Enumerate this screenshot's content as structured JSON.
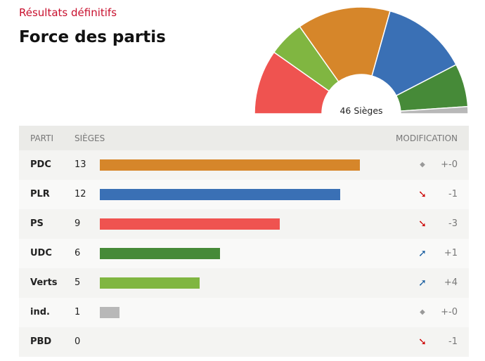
{
  "subtitle": "Résultats définitifs",
  "title": "Force des partis",
  "center_label": "46 Sièges",
  "headers": {
    "party": "PARTI",
    "seats": "SIÈGES",
    "change": "MODIFICATION"
  },
  "chart_data": {
    "type": "bar",
    "title": "Force des partis",
    "total_seats": 46,
    "categories": [
      "PDC",
      "PLR",
      "PS",
      "UDC",
      "Verts",
      "ind.",
      "PBD"
    ],
    "values": [
      13,
      12,
      9,
      6,
      5,
      1,
      0
    ],
    "changes": [
      "+-0",
      "-1",
      "-3",
      "+1",
      "+4",
      "+-0",
      "-1"
    ],
    "trend": [
      "same",
      "down",
      "down",
      "up",
      "up",
      "same",
      "down"
    ],
    "colors": [
      "#d6862a",
      "#3a70b5",
      "#ef5350",
      "#468a38",
      "#80b641",
      "#b8b8b8",
      "#cccccc"
    ],
    "hemicycle_order": [
      "PS",
      "Verts",
      "PDC",
      "PLR",
      "UDC",
      "ind."
    ],
    "xlim": [
      0,
      13
    ]
  },
  "trend_colors": {
    "same": "#999999",
    "down": "#cc0000",
    "up": "#1b5fa0"
  }
}
